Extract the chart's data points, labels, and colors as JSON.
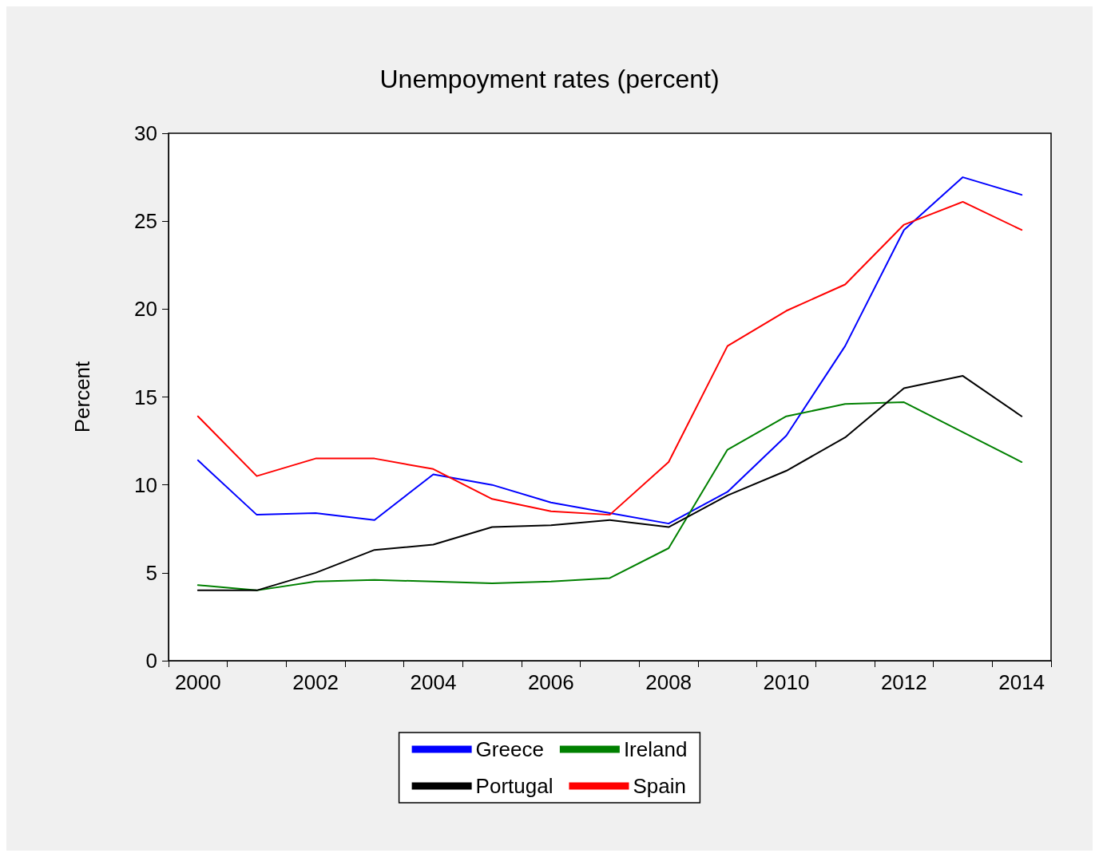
{
  "chart_data": {
    "type": "line",
    "title": "Unempoyment rates (percent)",
    "ylabel": "Percent",
    "categories": [
      "2000",
      null,
      "2002",
      null,
      "2004",
      null,
      "2006",
      null,
      "2008",
      null,
      "2010",
      null,
      "2012",
      null,
      "2014"
    ],
    "series": [
      {
        "name": "Greece",
        "color": "#0000ff",
        "values": [
          11.4,
          8.3,
          8.4,
          8.0,
          10.6,
          10.0,
          9.0,
          8.4,
          7.8,
          9.6,
          12.8,
          17.9,
          24.5,
          27.5,
          26.5
        ]
      },
      {
        "name": "Ireland",
        "color": "#008000",
        "values": [
          4.3,
          4.0,
          4.5,
          4.6,
          4.5,
          4.4,
          4.5,
          4.7,
          6.4,
          12.0,
          13.9,
          14.6,
          14.7,
          13.0,
          11.3
        ]
      },
      {
        "name": "Portugal",
        "color": "#000000",
        "values": [
          4.0,
          4.0,
          5.0,
          6.3,
          6.6,
          7.6,
          7.7,
          8.0,
          7.6,
          9.4,
          10.8,
          12.7,
          15.5,
          16.2,
          13.9
        ]
      },
      {
        "name": "Spain",
        "color": "#ff0000",
        "values": [
          13.9,
          10.5,
          11.5,
          11.5,
          10.9,
          9.2,
          8.5,
          8.3,
          11.3,
          17.9,
          19.9,
          21.4,
          24.8,
          26.1,
          24.5
        ]
      }
    ],
    "ylim": [
      0,
      30
    ],
    "yticks": [
      0,
      5,
      10,
      15,
      20,
      25,
      30
    ],
    "grid": false,
    "legend": "bottom",
    "marker": "none",
    "line_style": "solid"
  }
}
